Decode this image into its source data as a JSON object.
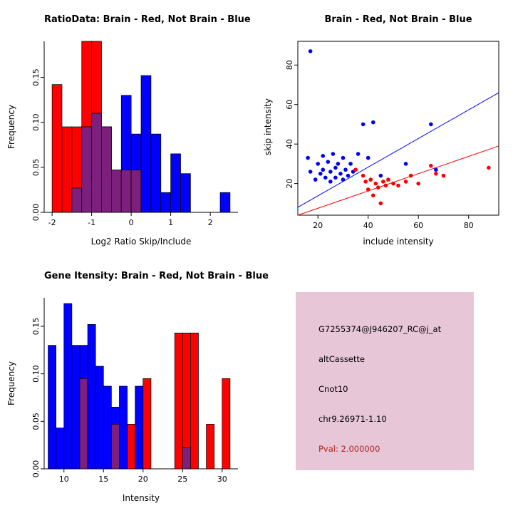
{
  "figure_bg": "#ffffff",
  "chart_data": [
    {
      "type": "bar",
      "title": "RatioData: Brain - Red, Not Brain - Blue",
      "xlabel": "Log2 Ratio Skip/Include",
      "ylabel": "Frequency",
      "bin_start": -2.0,
      "bin_width": 0.25,
      "series": [
        {
          "name": "Brain (red)",
          "color": "#ff0000",
          "values": [
            0.142,
            0.095,
            0.095,
            0.19,
            0.19,
            0.095,
            0.047,
            0.047,
            0.047,
            0,
            0,
            0,
            0,
            0,
            0,
            0,
            0,
            0
          ]
        },
        {
          "name": "Not Brain (blue)",
          "color": "#0000ff",
          "values": [
            0,
            0,
            0.027,
            0.095,
            0.11,
            0.095,
            0.047,
            0.13,
            0.087,
            0.152,
            0.087,
            0.022,
            0.065,
            0.043,
            0,
            0,
            0,
            0.022
          ]
        }
      ],
      "overlap_color": "#7d1f7d",
      "xlim": [
        -2.2,
        2.7
      ],
      "ylim": [
        0,
        0.19
      ],
      "xticks": [
        -2,
        -1,
        0,
        1,
        2
      ],
      "xtick_labels": [
        "-2",
        "-1",
        "0",
        "1",
        "2"
      ],
      "yticks": [
        0,
        0.05,
        0.1,
        0.15
      ],
      "ytick_labels": [
        "0.00",
        "0.05",
        "0.10",
        "0.15"
      ],
      "grid": false,
      "legend": "none"
    },
    {
      "type": "scatter",
      "title": "Brain - Red, Not Brain - Blue",
      "xlabel": "include intensity",
      "ylabel": "skip intensity",
      "xlim": [
        12,
        92
      ],
      "ylim": [
        4,
        92
      ],
      "xticks": [
        20,
        40,
        60,
        80
      ],
      "xtick_labels": [
        "20",
        "40",
        "60",
        "80"
      ],
      "yticks": [
        20,
        40,
        60,
        80
      ],
      "ytick_labels": [
        "20",
        "40",
        "60",
        "80"
      ],
      "grid": false,
      "legend": "none",
      "series": [
        {
          "name": "Not Brain (blue)",
          "color": "#0000ff",
          "points": [
            [
              17,
              87
            ],
            [
              16,
              33
            ],
            [
              17,
              26
            ],
            [
              19,
              22
            ],
            [
              20,
              30
            ],
            [
              21,
              25
            ],
            [
              22,
              34
            ],
            [
              22,
              27
            ],
            [
              23,
              23
            ],
            [
              24,
              31
            ],
            [
              25,
              26
            ],
            [
              25,
              21
            ],
            [
              26,
              35
            ],
            [
              27,
              28
            ],
            [
              27,
              23
            ],
            [
              28,
              30
            ],
            [
              29,
              25
            ],
            [
              30,
              33
            ],
            [
              30,
              22
            ],
            [
              31,
              27
            ],
            [
              32,
              24
            ],
            [
              33,
              30
            ],
            [
              34,
              26
            ],
            [
              36,
              35
            ],
            [
              38,
              50
            ],
            [
              40,
              33
            ],
            [
              42,
              51
            ],
            [
              45,
              24
            ],
            [
              55,
              30
            ],
            [
              65,
              50
            ],
            [
              67,
              27
            ]
          ]
        },
        {
          "name": "Brain (red)",
          "color": "#ff0000",
          "points": [
            [
              35,
              27
            ],
            [
              38,
              24
            ],
            [
              39,
              21
            ],
            [
              40,
              17
            ],
            [
              41,
              22
            ],
            [
              42,
              14
            ],
            [
              43,
              20
            ],
            [
              44,
              18
            ],
            [
              45,
              10
            ],
            [
              46,
              21
            ],
            [
              47,
              19
            ],
            [
              48,
              22
            ],
            [
              50,
              20
            ],
            [
              52,
              19
            ],
            [
              55,
              21
            ],
            [
              57,
              24
            ],
            [
              60,
              20
            ],
            [
              65,
              29
            ],
            [
              67,
              25
            ],
            [
              70,
              24
            ],
            [
              88,
              28
            ]
          ]
        }
      ],
      "lines": [
        {
          "name": "not-brain-fit",
          "color": "#0000ff",
          "x1": 12,
          "y1": 8,
          "x2": 92,
          "y2": 66
        },
        {
          "name": "brain-fit",
          "color": "#ff0000",
          "x1": 12,
          "y1": 4,
          "x2": 92,
          "y2": 39
        }
      ]
    },
    {
      "type": "bar",
      "title": "Gene Itensity: Brain - Red, Not Brain - Blue",
      "xlabel": "Intensity",
      "ylabel": "Frequency",
      "bin_start": 8,
      "bin_width": 1,
      "series": [
        {
          "name": "Brain (red)",
          "color": "#ff0000",
          "values": [
            0,
            0,
            0,
            0,
            0.095,
            0,
            0,
            0,
            0.047,
            0,
            0.047,
            0,
            0.095,
            0,
            0,
            0,
            0.143,
            0.143,
            0.143,
            0,
            0.047,
            0,
            0.095
          ]
        },
        {
          "name": "Not Brain (blue)",
          "color": "#0000ff",
          "values": [
            0.13,
            0.043,
            0.174,
            0.13,
            0.13,
            0.152,
            0.108,
            0.087,
            0.065,
            0.087,
            0,
            0.087,
            0,
            0,
            0,
            0,
            0,
            0.022,
            0,
            0,
            0,
            0,
            0
          ]
        }
      ],
      "overlap_color": "#7d1f7d",
      "xlim": [
        7.5,
        32
      ],
      "ylim": [
        0,
        0.18
      ],
      "xticks": [
        10,
        15,
        20,
        25,
        30
      ],
      "xtick_labels": [
        "10",
        "15",
        "20",
        "25",
        "30"
      ],
      "yticks": [
        0,
        0.05,
        0.1,
        0.15
      ],
      "ytick_labels": [
        "0.00",
        "0.05",
        "0.10",
        "0.15"
      ],
      "grid": false,
      "legend": "none"
    }
  ],
  "info": {
    "bg_color": "#e7c6d7",
    "probe_id": "G7255374@J946207_RC@j_at",
    "event_type": "altCassette",
    "gene": "Cnot10",
    "location": "chr9.26971-1.10",
    "pval": "Pval: 2.000000",
    "pval_color": "#b22222"
  }
}
